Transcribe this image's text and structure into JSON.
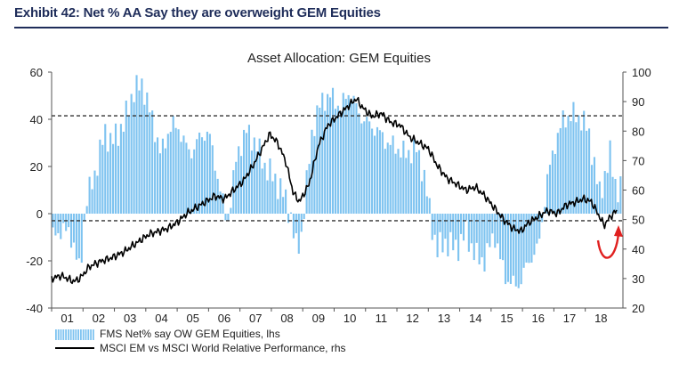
{
  "exhibit": {
    "title": "Exhibit 42: Net % AA Say they are overweight GEM Equities"
  },
  "colors": {
    "bars": "#7ec3f0",
    "line": "#000000",
    "arrow": "#e0201f",
    "title": "#1f2d5a"
  },
  "chart_data": {
    "type": "bar+line",
    "title": "Asset Allocation: GEM Equities",
    "x_ticks": [
      "01",
      "02",
      "03",
      "04",
      "05",
      "06",
      "07",
      "08",
      "09",
      "10",
      "11",
      "12",
      "13",
      "14",
      "15",
      "16",
      "17",
      "18"
    ],
    "x_range": [
      2001.0,
      2019.2
    ],
    "y_left": {
      "range": [
        -40,
        60
      ],
      "ticks": [
        "60",
        "40",
        "20",
        "0",
        "-20",
        "-40"
      ]
    },
    "y_right": {
      "range": [
        20,
        100
      ],
      "ticks": [
        "100",
        "90",
        "80",
        "70",
        "60",
        "50",
        "40",
        "30",
        "20"
      ]
    },
    "reference_lines_left": [
      41.5,
      -3
    ],
    "grid": false,
    "legend_position": "bottom-left",
    "series": [
      {
        "name": "FMS Net% say OW GEM Equities, lhs",
        "type": "bar",
        "axis": "left",
        "knots": [
          [
            2001.0,
            -10
          ],
          [
            2001.3,
            -7
          ],
          [
            2001.6,
            -8
          ],
          [
            2001.9,
            -25
          ],
          [
            2002.1,
            5
          ],
          [
            2002.4,
            18
          ],
          [
            2002.7,
            35
          ],
          [
            2002.9,
            30
          ],
          [
            2003.3,
            38
          ],
          [
            2003.6,
            52
          ],
          [
            2003.9,
            55
          ],
          [
            2004.2,
            40
          ],
          [
            2004.5,
            25
          ],
          [
            2004.8,
            38
          ],
          [
            2005.1,
            35
          ],
          [
            2005.4,
            25
          ],
          [
            2005.7,
            32
          ],
          [
            2006.0,
            35
          ],
          [
            2006.3,
            15
          ],
          [
            2006.6,
            -5
          ],
          [
            2006.9,
            25
          ],
          [
            2007.2,
            35
          ],
          [
            2007.5,
            30
          ],
          [
            2007.8,
            20
          ],
          [
            2008.1,
            15
          ],
          [
            2008.4,
            8
          ],
          [
            2008.6,
            0
          ],
          [
            2008.8,
            -15
          ],
          [
            2008.95,
            -10
          ],
          [
            2009.3,
            35
          ],
          [
            2009.6,
            48
          ],
          [
            2009.9,
            50
          ],
          [
            2010.2,
            45
          ],
          [
            2010.5,
            52
          ],
          [
            2010.8,
            42
          ],
          [
            2011.1,
            38
          ],
          [
            2011.4,
            35
          ],
          [
            2011.7,
            30
          ],
          [
            2012.0,
            28
          ],
          [
            2012.3,
            25
          ],
          [
            2012.6,
            28
          ],
          [
            2012.9,
            15
          ],
          [
            2013.1,
            -5
          ],
          [
            2013.3,
            -15
          ],
          [
            2013.6,
            -12
          ],
          [
            2013.9,
            -15
          ],
          [
            2014.2,
            -8
          ],
          [
            2014.5,
            -18
          ],
          [
            2014.8,
            -20
          ],
          [
            2015.1,
            -8
          ],
          [
            2015.3,
            -20
          ],
          [
            2015.5,
            -28
          ],
          [
            2015.7,
            -30
          ],
          [
            2015.9,
            -30
          ],
          [
            2016.2,
            -20
          ],
          [
            2016.5,
            -15
          ],
          [
            2016.8,
            15
          ],
          [
            2017.0,
            28
          ],
          [
            2017.3,
            40
          ],
          [
            2017.6,
            42
          ],
          [
            2017.9,
            40
          ],
          [
            2018.1,
            35
          ],
          [
            2018.3,
            20
          ],
          [
            2018.45,
            8
          ],
          [
            2018.6,
            15
          ],
          [
            2018.8,
            25
          ],
          [
            2019.0,
            10
          ]
        ]
      },
      {
        "name": "MSCI EM vs MSCI World Relative Performance, rhs",
        "type": "line",
        "axis": "right",
        "points": [
          [
            2001.0,
            30
          ],
          [
            2001.3,
            31
          ],
          [
            2001.7,
            29
          ],
          [
            2001.9,
            30
          ],
          [
            2002.2,
            34
          ],
          [
            2002.6,
            36
          ],
          [
            2002.9,
            37
          ],
          [
            2003.3,
            39
          ],
          [
            2003.7,
            42
          ],
          [
            2004.1,
            45
          ],
          [
            2004.4,
            46
          ],
          [
            2004.7,
            47
          ],
          [
            2005.0,
            49
          ],
          [
            2005.3,
            52
          ],
          [
            2005.6,
            54
          ],
          [
            2005.9,
            56
          ],
          [
            2006.2,
            58
          ],
          [
            2006.5,
            57
          ],
          [
            2006.8,
            60
          ],
          [
            2007.1,
            63
          ],
          [
            2007.4,
            68
          ],
          [
            2007.7,
            74
          ],
          [
            2007.95,
            79
          ],
          [
            2008.2,
            76
          ],
          [
            2008.45,
            70
          ],
          [
            2008.7,
            59
          ],
          [
            2008.9,
            56
          ],
          [
            2009.2,
            62
          ],
          [
            2009.5,
            75
          ],
          [
            2009.8,
            82
          ],
          [
            2010.1,
            85
          ],
          [
            2010.4,
            88
          ],
          [
            2010.7,
            91
          ],
          [
            2010.9,
            88
          ],
          [
            2011.2,
            85
          ],
          [
            2011.5,
            86
          ],
          [
            2011.8,
            83
          ],
          [
            2012.1,
            82
          ],
          [
            2012.4,
            78
          ],
          [
            2012.7,
            76
          ],
          [
            2013.0,
            74
          ],
          [
            2013.3,
            68
          ],
          [
            2013.6,
            64
          ],
          [
            2013.9,
            62
          ],
          [
            2014.2,
            60
          ],
          [
            2014.5,
            61
          ],
          [
            2014.8,
            58
          ],
          [
            2015.1,
            54
          ],
          [
            2015.4,
            50
          ],
          [
            2015.7,
            47
          ],
          [
            2015.95,
            46
          ],
          [
            2016.2,
            49
          ],
          [
            2016.5,
            51
          ],
          [
            2016.8,
            53
          ],
          [
            2017.1,
            52
          ],
          [
            2017.4,
            55
          ],
          [
            2017.7,
            56
          ],
          [
            2017.95,
            57
          ],
          [
            2018.2,
            56
          ],
          [
            2018.4,
            52
          ],
          [
            2018.6,
            48
          ],
          [
            2018.8,
            51
          ],
          [
            2019.0,
            53
          ]
        ]
      }
    ]
  },
  "legend": {
    "bar_label": "FMS Net% say OW GEM Equities, lhs",
    "line_label": "MSCI EM vs MSCI World Relative Performance, rhs"
  }
}
